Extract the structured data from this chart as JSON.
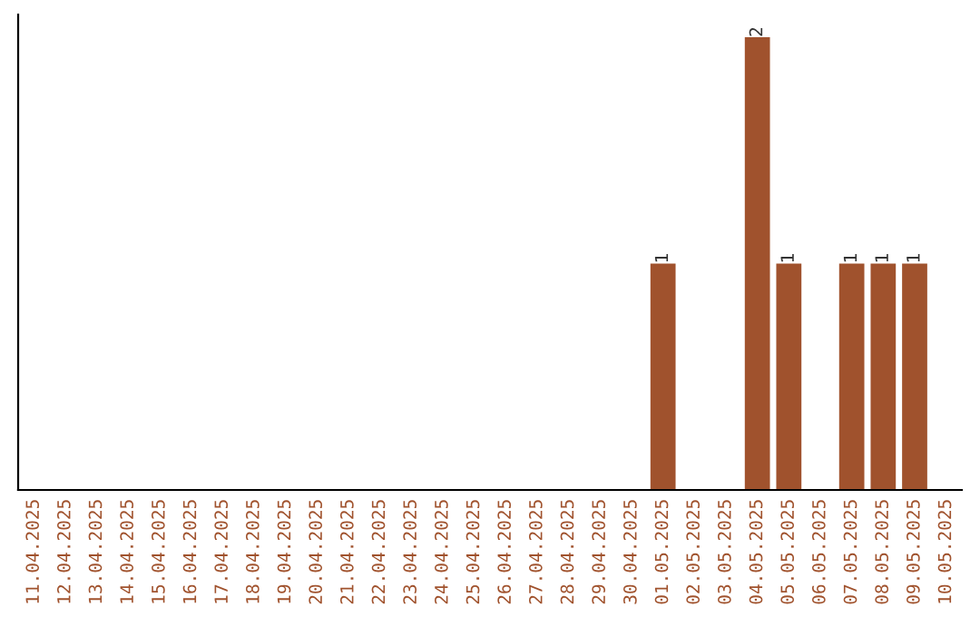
{
  "chart_data": {
    "type": "bar",
    "categories": [
      "11.04.2025",
      "12.04.2025",
      "13.04.2025",
      "14.04.2025",
      "15.04.2025",
      "16.04.2025",
      "17.04.2025",
      "18.04.2025",
      "19.04.2025",
      "20.04.2025",
      "21.04.2025",
      "22.04.2025",
      "23.04.2025",
      "24.04.2025",
      "25.04.2025",
      "26.04.2025",
      "27.04.2025",
      "28.04.2025",
      "29.04.2025",
      "30.04.2025",
      "01.05.2025",
      "02.05.2025",
      "03.05.2025",
      "04.05.2025",
      "05.05.2025",
      "06.05.2025",
      "07.05.2025",
      "08.05.2025",
      "09.05.2025",
      "10.05.2025"
    ],
    "values": [
      null,
      null,
      null,
      null,
      null,
      null,
      null,
      null,
      null,
      null,
      null,
      null,
      null,
      null,
      null,
      null,
      null,
      null,
      null,
      null,
      1,
      null,
      null,
      2,
      1,
      null,
      1,
      1,
      1,
      null
    ],
    "value_labels": [
      null,
      null,
      null,
      null,
      null,
      null,
      null,
      null,
      null,
      null,
      null,
      null,
      null,
      null,
      null,
      null,
      null,
      null,
      null,
      null,
      "1",
      null,
      null,
      "2",
      "1",
      null,
      "1",
      "1",
      "1",
      null
    ],
    "color": "#a0522d",
    "tick_labels": "x",
    "grid": false
  }
}
